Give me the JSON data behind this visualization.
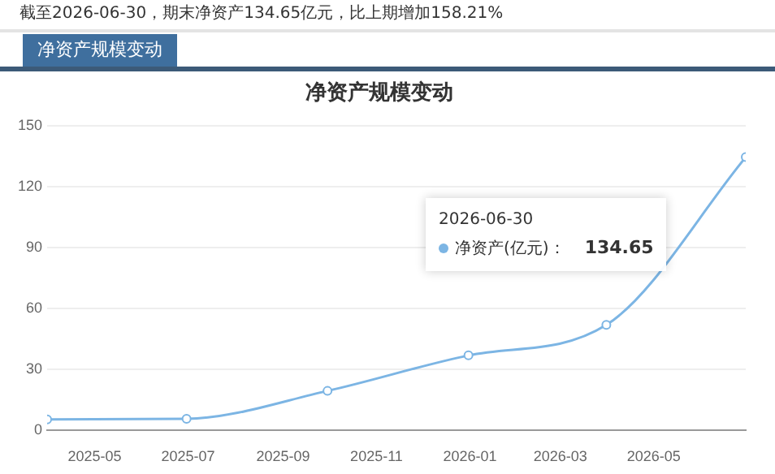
{
  "chart_data": {
    "type": "line",
    "title": "净资产规模变动",
    "annotations": [
      "截至2026-06-30，期末净资产134.65亿元，比上期增加158.21%",
      "净资产规模变动",
      "2026-06-30",
      "134.65"
    ],
    "x": [
      "2025-03-31",
      "2025-06-30",
      "2025-09-30",
      "2025-12-31",
      "2026-03-31",
      "2026-06-30"
    ],
    "series": [
      {
        "name": "净资产(亿元)：",
        "color": "#7cb5e4",
        "values": [
          5.5,
          5.8,
          19.5,
          37,
          52,
          134.65
        ]
      }
    ],
    "xlim": [
      "2025-03-31",
      "2026-06-30"
    ],
    "xticks": [
      {
        "value": "2025-05-01",
        "label": "2025-05"
      },
      {
        "value": "2025-07-01",
        "label": "2025-07"
      },
      {
        "value": "2025-09-01",
        "label": "2025-09"
      },
      {
        "value": "2025-11-01",
        "label": "2025-11"
      },
      {
        "value": "2026-01-01",
        "label": "2026-01"
      },
      {
        "value": "2026-03-01",
        "label": "2026-03"
      },
      {
        "value": "2026-05-01",
        "label": "2026-05"
      }
    ],
    "ylim": [
      0,
      150
    ],
    "yticks": [
      0,
      30,
      60,
      90,
      120,
      150
    ],
    "grid": "y",
    "legend": "right",
    "marker": "circle",
    "line_style": "solid"
  }
}
